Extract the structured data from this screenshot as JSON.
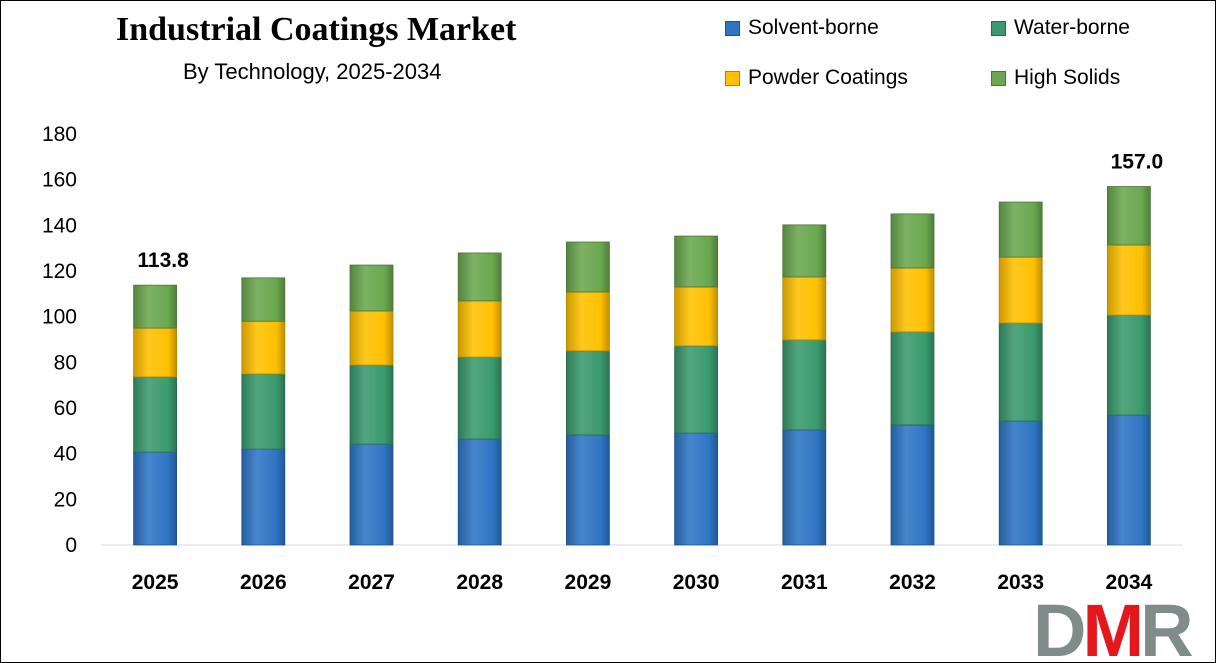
{
  "chart_data": {
    "type": "bar",
    "stacked": true,
    "title": "Industrial Coatings Market",
    "subtitle": "By Technology, 2025-2034",
    "categories": [
      "2025",
      "2026",
      "2027",
      "2028",
      "2029",
      "2030",
      "2031",
      "2032",
      "2033",
      "2034"
    ],
    "series": [
      {
        "name": "Solvent-borne",
        "color": "#2E75C4",
        "values": [
          40.7,
          42.0,
          44.2,
          46.4,
          48.2,
          49.0,
          50.4,
          52.6,
          54.3,
          56.9
        ]
      },
      {
        "name": "Water-borne",
        "color": "#3A9A6E",
        "values": [
          32.9,
          32.9,
          34.6,
          35.9,
          36.8,
          38.2,
          39.4,
          40.7,
          42.9,
          43.8
        ]
      },
      {
        "name": "Powder Coatings",
        "color": "#FFC000",
        "values": [
          21.4,
          23.1,
          23.7,
          24.6,
          25.8,
          25.8,
          27.6,
          28.0,
          28.9,
          30.7
        ]
      },
      {
        "name": "High Solids",
        "color": "#6AA84F",
        "values": [
          18.8,
          19.0,
          20.1,
          21.0,
          21.9,
          22.3,
          22.8,
          23.7,
          24.1,
          25.6
        ]
      }
    ],
    "data_labels": [
      {
        "category": "2025",
        "text": "113.8"
      },
      {
        "category": "2034",
        "text": "157.0"
      }
    ],
    "ylim": [
      0,
      180
    ],
    "yticks": [
      "0",
      "20",
      "40",
      "60",
      "80",
      "100",
      "120",
      "140",
      "160",
      "180"
    ],
    "grid": false,
    "legend_placement": "top-right"
  },
  "logo": {
    "text": "DMR",
    "letters": [
      "D",
      "M",
      "R"
    ],
    "colors": [
      "#7F8C8A",
      "#E4171D",
      "#7F8C8A"
    ]
  }
}
